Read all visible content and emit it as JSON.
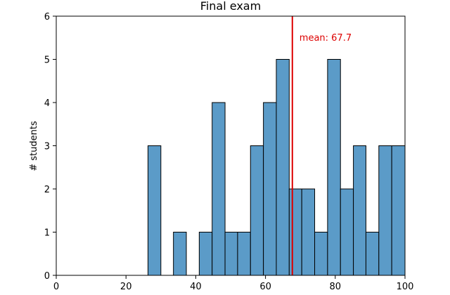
{
  "chart_data": {
    "type": "bar",
    "title": "Final exam",
    "xlabel": "",
    "ylabel": "# students",
    "xlim": [
      0,
      100
    ],
    "ylim": [
      0,
      6
    ],
    "xticks": [
      0,
      20,
      40,
      60,
      80,
      100
    ],
    "yticks": [
      0,
      1,
      2,
      3,
      4,
      5,
      6
    ],
    "bins": [
      {
        "start": 26.3,
        "end": 30.0,
        "count": 3
      },
      {
        "start": 30.0,
        "end": 33.6,
        "count": 0
      },
      {
        "start": 33.6,
        "end": 37.3,
        "count": 1
      },
      {
        "start": 37.3,
        "end": 41.0,
        "count": 0
      },
      {
        "start": 41.0,
        "end": 44.7,
        "count": 1
      },
      {
        "start": 44.7,
        "end": 48.4,
        "count": 4
      },
      {
        "start": 48.4,
        "end": 52.0,
        "count": 1
      },
      {
        "start": 52.0,
        "end": 55.7,
        "count": 1
      },
      {
        "start": 55.7,
        "end": 59.4,
        "count": 3
      },
      {
        "start": 59.4,
        "end": 63.1,
        "count": 4
      },
      {
        "start": 63.1,
        "end": 66.8,
        "count": 5
      },
      {
        "start": 66.8,
        "end": 70.4,
        "count": 2
      },
      {
        "start": 70.4,
        "end": 74.1,
        "count": 2
      },
      {
        "start": 74.1,
        "end": 77.8,
        "count": 1
      },
      {
        "start": 77.8,
        "end": 81.5,
        "count": 5
      },
      {
        "start": 81.5,
        "end": 85.2,
        "count": 2
      },
      {
        "start": 85.2,
        "end": 88.8,
        "count": 3
      },
      {
        "start": 88.8,
        "end": 92.5,
        "count": 1
      },
      {
        "start": 92.5,
        "end": 96.2,
        "count": 3
      },
      {
        "start": 96.2,
        "end": 100.0,
        "count": 3
      }
    ],
    "bar_color": "#5b9bc8",
    "bar_edge_color": "#000000",
    "mean": {
      "value": 67.7,
      "label": "mean: 67.7",
      "color": "#dd0000"
    },
    "grid": false,
    "legend": "none"
  }
}
